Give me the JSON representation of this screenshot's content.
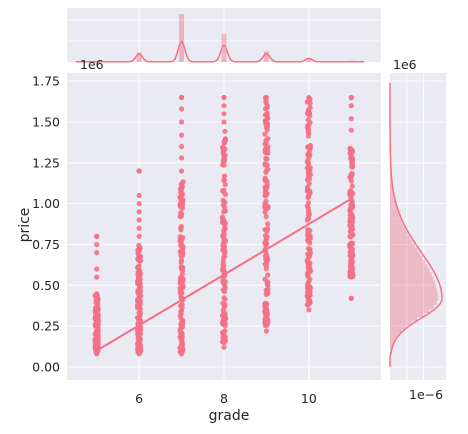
{
  "chart_data": {
    "type": "scatter",
    "kind": "jointplot",
    "xlabel": "grade",
    "ylabel": "price",
    "xlim": [
      4.3,
      11.7
    ],
    "ylim": [
      -0.08,
      1.8
    ],
    "y_offset_label": "1e6",
    "x_ticks": [
      6,
      8,
      10
    ],
    "x_tick_labels": [
      "6",
      "8",
      "10"
    ],
    "y_ticks": [
      0.0,
      0.25,
      0.5,
      0.75,
      1.0,
      1.25,
      1.5,
      1.75
    ],
    "y_tick_labels": [
      "0.00",
      "0.25",
      "0.50",
      "0.75",
      "1.00",
      "1.25",
      "1.50",
      "1.75"
    ],
    "grid": true,
    "color": "#f37088",
    "background": "#eaeaf2",
    "columns": [
      {
        "x": 5,
        "min": 0.08,
        "max": 0.8,
        "dense_min": 0.09,
        "dense_max": 0.45,
        "outliers": [
          0.55,
          0.6,
          0.7,
          0.75,
          0.8
        ]
      },
      {
        "x": 6,
        "min": 0.08,
        "max": 1.2,
        "dense_min": 0.09,
        "dense_max": 0.75,
        "outliers": [
          0.8,
          0.85,
          0.9,
          0.95,
          1.0,
          1.05,
          1.2
        ]
      },
      {
        "x": 7,
        "min": 0.08,
        "max": 1.65,
        "dense_min": 0.09,
        "dense_max": 1.15,
        "outliers": [
          1.2,
          1.28,
          1.35,
          1.42,
          1.5,
          1.58,
          1.65
        ]
      },
      {
        "x": 8,
        "min": 0.12,
        "max": 1.65,
        "dense_min": 0.15,
        "dense_max": 1.45,
        "outliers": [
          1.5,
          1.55,
          1.6,
          1.65
        ]
      },
      {
        "x": 9,
        "min": 0.22,
        "max": 1.65,
        "dense_min": 0.25,
        "dense_max": 1.65,
        "outliers": []
      },
      {
        "x": 10,
        "min": 0.35,
        "max": 1.65,
        "dense_min": 0.38,
        "dense_max": 1.65,
        "outliers": []
      },
      {
        "x": 11,
        "min": 0.42,
        "max": 1.65,
        "dense_min": 0.55,
        "dense_max": 1.35,
        "outliers": [
          0.42,
          0.6,
          1.45,
          1.52,
          1.6,
          1.65
        ]
      }
    ],
    "regression": {
      "x0": 5,
      "y0": 0.1,
      "x1": 11,
      "y1": 1.03
    },
    "top_marginal": {
      "type": "histogram+kde",
      "bins": [
        {
          "x": 6,
          "height": 0.2
        },
        {
          "x": 7,
          "height": 1.0
        },
        {
          "x": 8,
          "height": 0.58
        },
        {
          "x": 9,
          "height": 0.22
        },
        {
          "x": 10,
          "height": 0.08
        },
        {
          "x": 11,
          "height": 0.03
        }
      ],
      "kde_peaks": [
        {
          "x": 6,
          "height": 0.16
        },
        {
          "x": 7,
          "height": 0.42
        },
        {
          "x": 8,
          "height": 0.34
        },
        {
          "x": 9,
          "height": 0.17
        },
        {
          "x": 10,
          "height": 0.07
        }
      ]
    },
    "right_marginal": {
      "type": "histogram+kde",
      "offset_label": "1e6",
      "bottom_tick_label": "1e−6",
      "kde_mode": 0.42
    }
  }
}
